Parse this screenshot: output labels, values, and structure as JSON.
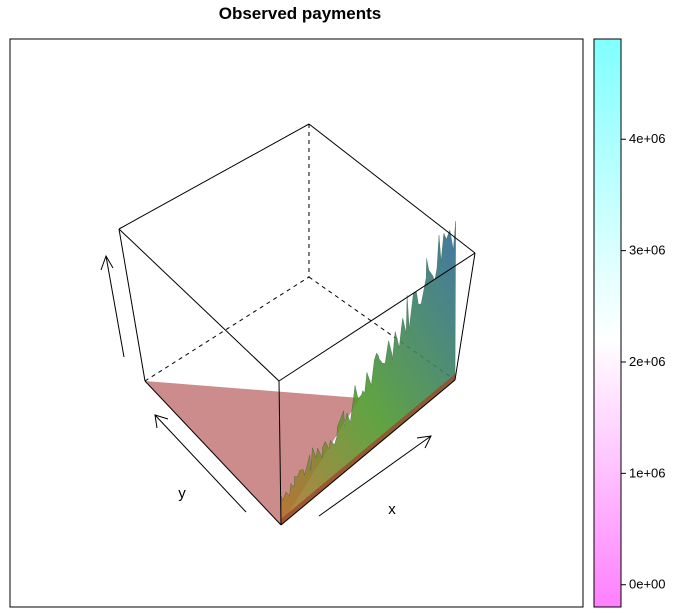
{
  "chart_data": {
    "type": "surface3d",
    "title": "Observed payments",
    "xlabel": "x",
    "ylabel": "y",
    "zlabel": "",
    "colorkey": {
      "ticks": [
        {
          "value": 0,
          "label": "0e+00"
        },
        {
          "value": 1000000,
          "label": "1e+06"
        },
        {
          "value": 2000000,
          "label": "2e+06"
        },
        {
          "value": 3000000,
          "label": "3e+06"
        },
        {
          "value": 4000000,
          "label": "4e+06"
        }
      ],
      "range": [
        -200000,
        4900000
      ],
      "colors": {
        "low": "#ff80ff",
        "mid": "#ffffff",
        "high": "#80ffff"
      }
    },
    "surface": {
      "floor_color": "#c98686",
      "description_colors": {
        "low": "#b8742f",
        "mid": "#4f9a2f",
        "high": "#2e6a9a"
      }
    }
  }
}
